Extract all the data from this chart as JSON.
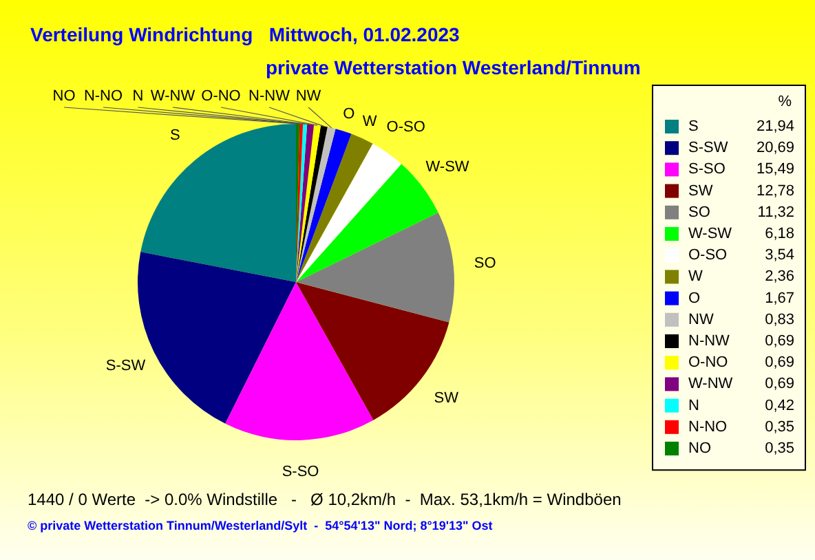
{
  "chart_data": {
    "type": "pie",
    "title": "Verteilung Windrichtung   Mittwoch, 01.02.2023",
    "subtitle": "private Wetterstation Westerland/Tinnum",
    "legend_title": "%",
    "legend": "right",
    "categories": [
      "S",
      "S-SW",
      "S-SO",
      "SW",
      "SO",
      "W-SW",
      "O-SO",
      "W",
      "O",
      "NW",
      "N-NW",
      "O-NO",
      "W-NW",
      "N",
      "N-NO",
      "NO"
    ],
    "values": [
      21.94,
      20.69,
      15.49,
      12.78,
      11.32,
      6.18,
      3.54,
      2.36,
      1.67,
      0.83,
      0.69,
      0.69,
      0.69,
      0.42,
      0.35,
      0.35
    ],
    "value_labels": [
      "21,94",
      "20,69",
      "15,49",
      "12,78",
      "11,32",
      "6,18",
      "3,54",
      "2,36",
      "1,67",
      "0,83",
      "0,69",
      "0,69",
      "0,69",
      "0,42",
      "0,35",
      "0,35"
    ],
    "colors": [
      "#008080",
      "#000080",
      "#ff00ff",
      "#800000",
      "#808080",
      "#00ff00",
      "#ffffff",
      "#808000",
      "#0000ff",
      "#c0c0c0",
      "#000000",
      "#ffff00",
      "#800080",
      "#00ffff",
      "#ff0000",
      "#008000"
    ],
    "annotations": [
      "1440 / 0 Werte  -> 0.0% Windstille   -   Ø 10,2km/h  -  Max. 53,1km/h = Windböen",
      "© private Wetterstation Tinnum/Westerland/Sylt  -  54°54'13\" Nord; 8°19'13\" Ost"
    ]
  }
}
